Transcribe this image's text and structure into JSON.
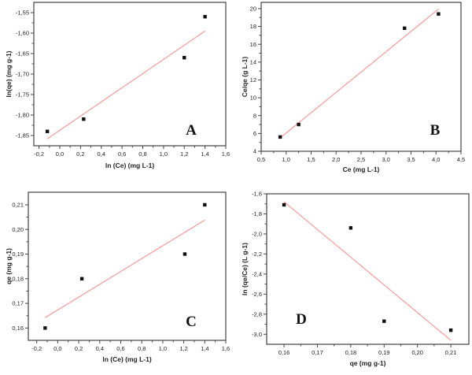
{
  "chart_data": [
    {
      "type": "scatter",
      "panel_label": "A",
      "xlabel": "ln (Ce) (mg L-1)",
      "ylabel": "ln(qe) (mg g-1)",
      "xlim": [
        -0.25,
        1.6
      ],
      "ylim": [
        -1.875,
        -1.525
      ],
      "xticks": [
        -0.2,
        0.0,
        0.2,
        0.4,
        0.6,
        0.8,
        1.0,
        1.2,
        1.4,
        1.6
      ],
      "xtick_labels": [
        "-0,2",
        "0,0",
        "0,2",
        "0,4",
        "0,6",
        "0,8",
        "1,0",
        "1,2",
        "1,4",
        "1,6"
      ],
      "yticks": [
        -1.85,
        -1.8,
        -1.75,
        -1.7,
        -1.65,
        -1.6,
        -1.55
      ],
      "ytick_labels": [
        "-1,85",
        "-1,80",
        "-1,75",
        "-1,70",
        "-1,65",
        "-1,60",
        "-1,55"
      ],
      "points": {
        "x": [
          -0.12,
          0.23,
          1.2,
          1.4
        ],
        "y": [
          -1.84,
          -1.81,
          -1.66,
          -1.56
        ]
      },
      "fit_line": {
        "x": [
          -0.12,
          1.4
        ],
        "y": [
          -1.858,
          -1.595
        ]
      },
      "line_color": "#f4a0a0",
      "grid": false
    },
    {
      "type": "scatter",
      "panel_label": "B",
      "xlabel": "Ce (mg L-1)",
      "ylabel": "Ce/qe (g L-1)",
      "xlim": [
        0.5,
        4.5
      ],
      "ylim": [
        4,
        20.7
      ],
      "xticks": [
        0.5,
        1.0,
        1.5,
        2.0,
        2.5,
        3.0,
        3.5,
        4.0,
        4.5
      ],
      "xtick_labels": [
        "0,5",
        "1,0",
        "1,5",
        "2,0",
        "2,5",
        "3,0",
        "3,5",
        "4,0",
        "4,5"
      ],
      "yticks": [
        4,
        6,
        8,
        10,
        12,
        14,
        16,
        18,
        20
      ],
      "ytick_labels": [
        "4",
        "6",
        "8",
        "10",
        "12",
        "14",
        "16",
        "18",
        "20"
      ],
      "points": {
        "x": [
          0.88,
          1.25,
          3.37,
          4.05
        ],
        "y": [
          5.6,
          7.0,
          17.8,
          19.4
        ]
      },
      "fit_line": {
        "x": [
          0.88,
          4.05
        ],
        "y": [
          5.5,
          19.95
        ]
      },
      "line_color": "#f4a0a0",
      "grid": false
    },
    {
      "type": "scatter",
      "panel_label": "C",
      "xlabel": "ln (Ce) (mg L-1)",
      "ylabel": "qe (mg g-1)",
      "xlim": [
        -0.28,
        1.6
      ],
      "ylim": [
        0.155,
        0.2151
      ],
      "xticks": [
        -0.2,
        0.0,
        0.2,
        0.4,
        0.6,
        0.8,
        1.0,
        1.2,
        1.4,
        1.6
      ],
      "xtick_labels": [
        "-0,2",
        "0,0",
        "0,2",
        "0,4",
        "0,6",
        "0,8",
        "1,0",
        "1,2",
        "1,4",
        "1,6"
      ],
      "yticks": [
        0.16,
        0.17,
        0.18,
        0.19,
        0.2,
        0.21
      ],
      "ytick_labels": [
        "0,16",
        "0,17",
        "0,18",
        "0,19",
        "0,20",
        "0,21"
      ],
      "points": {
        "x": [
          -0.12,
          0.23,
          1.21,
          1.4
        ],
        "y": [
          0.16,
          0.18,
          0.19,
          0.21
        ]
      },
      "fit_line": {
        "x": [
          -0.12,
          1.4
        ],
        "y": [
          0.1642,
          0.2038
        ]
      },
      "line_color": "#f4a0a0",
      "grid": false
    },
    {
      "type": "scatter",
      "panel_label": "D",
      "xlabel": "qe (mg g-1)",
      "ylabel": "ln (qe/Ce) (L g-1)",
      "xlim": [
        0.1548,
        0.2154
      ],
      "ylim": [
        -3.1,
        -1.6
      ],
      "xticks": [
        0.16,
        0.17,
        0.18,
        0.19,
        0.2,
        0.21
      ],
      "xtick_labels": [
        "0,16",
        "0,17",
        "0,18",
        "0,19",
        "0,20",
        "0,21"
      ],
      "yticks": [
        -3.0,
        -2.8,
        -2.6,
        -2.4,
        -2.2,
        -2.0,
        -1.8,
        -1.6
      ],
      "ytick_labels": [
        "-3,0",
        "-2,8",
        "-2,6",
        "-2,4",
        "-2,2",
        "-2,0",
        "-1,8",
        "-1,6"
      ],
      "points": {
        "x": [
          0.16,
          0.18,
          0.19,
          0.21
        ],
        "y": [
          -1.71,
          -1.94,
          -2.87,
          -2.96
        ]
      },
      "fit_line": {
        "x": [
          0.16,
          0.21
        ],
        "y": [
          -1.68,
          -3.06
        ]
      },
      "line_color": "#f4a0a0",
      "grid": false
    }
  ]
}
